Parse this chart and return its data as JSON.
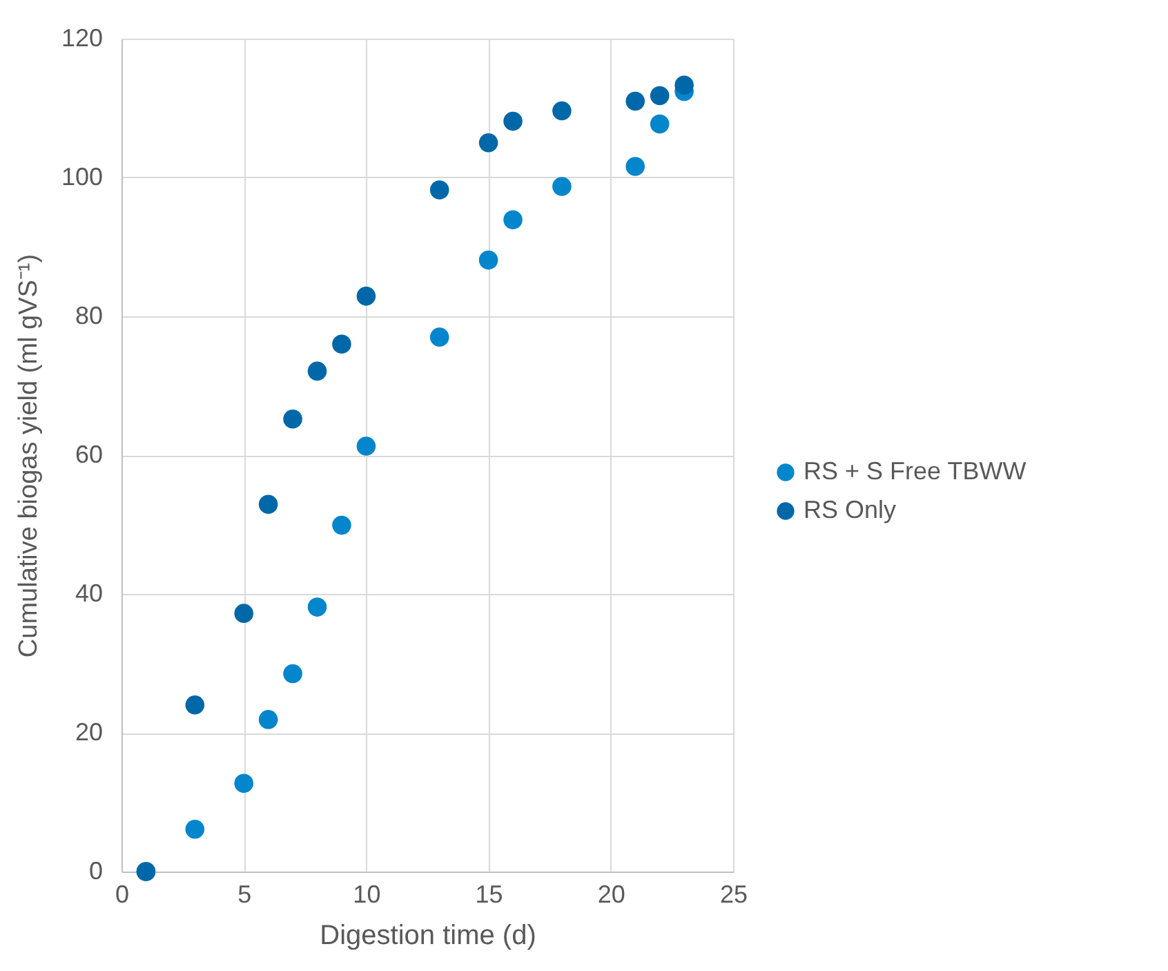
{
  "chart_data": {
    "type": "scatter",
    "xlabel": "Digestion time (d)",
    "ylabel": "Cumulative biogas yield (ml gVS⁻¹)",
    "xlim": [
      0,
      25
    ],
    "xticks": [
      0,
      5,
      10,
      15,
      20,
      25
    ],
    "ylim": [
      0,
      120
    ],
    "yticks": [
      0,
      20,
      40,
      60,
      80,
      100,
      120
    ],
    "grid": true,
    "legend": "right",
    "marker": "circle",
    "x": [
      1,
      3,
      5,
      6,
      7,
      8,
      9,
      10,
      13,
      15,
      16,
      18,
      21,
      22,
      23
    ],
    "series": [
      {
        "name": "RS + S Free TBWW",
        "color": "#0486cc",
        "values": [
          0,
          6.1,
          12.7,
          21.9,
          28.5,
          38.1,
          49.9,
          61.3,
          77.0,
          88.1,
          93.9,
          98.7,
          101.6,
          107.7,
          112.4
        ]
      },
      {
        "name": "RS Only",
        "color": "#0068a8",
        "values": [
          0,
          24.0,
          37.2,
          52.9,
          65.2,
          72.1,
          76.0,
          82.9,
          98.2,
          105.0,
          108.1,
          109.6,
          111.0,
          111.8,
          113.3
        ]
      }
    ]
  }
}
